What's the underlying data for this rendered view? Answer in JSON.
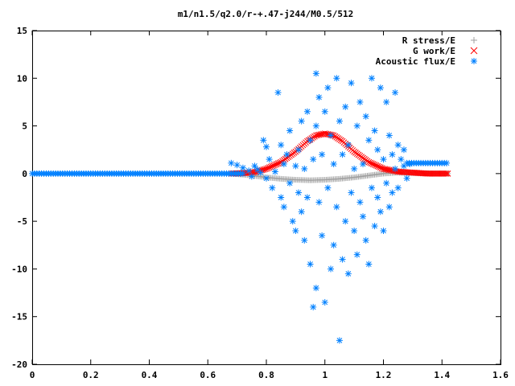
{
  "chart_data": {
    "type": "scatter",
    "title": "m1/n1.5/q2.0/r-+.47-j244/M0.5/512",
    "xlabel": "",
    "ylabel": "",
    "xlim": [
      0,
      1.6
    ],
    "ylim": [
      -20,
      15
    ],
    "grid": false,
    "legend_position": "top-right",
    "x_tick_labels": [
      "0",
      "0.2",
      "0.4",
      "0.6",
      "0.8",
      "1",
      "1.2",
      "1.4",
      "1.6"
    ],
    "y_tick_labels": [
      "15",
      "10",
      "5",
      "0",
      "-5",
      "-10",
      "-15",
      "-20"
    ],
    "series": [
      {
        "name": "R stress/E",
        "marker": "+",
        "color": "#a0a0a0",
        "curve": [
          [
            0.68,
            0.0
          ],
          [
            0.75,
            -0.2
          ],
          [
            0.8,
            -0.4
          ],
          [
            0.85,
            -0.55
          ],
          [
            0.9,
            -0.65
          ],
          [
            0.95,
            -0.7
          ],
          [
            1.0,
            -0.65
          ],
          [
            1.05,
            -0.55
          ],
          [
            1.1,
            -0.4
          ],
          [
            1.15,
            -0.2
          ],
          [
            1.2,
            0.0
          ],
          [
            1.25,
            0.1
          ],
          [
            1.3,
            0.05
          ],
          [
            1.42,
            0.0
          ]
        ]
      },
      {
        "name": "G work/E",
        "marker": "x",
        "color": "#ff0000",
        "curve": [
          [
            0.68,
            0.0
          ],
          [
            0.72,
            0.05
          ],
          [
            0.76,
            0.15
          ],
          [
            0.8,
            0.5
          ],
          [
            0.85,
            1.2
          ],
          [
            0.9,
            2.3
          ],
          [
            0.94,
            3.4
          ],
          [
            0.97,
            4.0
          ],
          [
            1.0,
            4.2
          ],
          [
            1.03,
            4.0
          ],
          [
            1.06,
            3.4
          ],
          [
            1.1,
            2.3
          ],
          [
            1.15,
            1.2
          ],
          [
            1.2,
            0.5
          ],
          [
            1.25,
            0.2
          ],
          [
            1.3,
            0.1
          ],
          [
            1.35,
            0.0
          ],
          [
            1.42,
            0.0
          ]
        ]
      },
      {
        "name": "Acoustic flux/E",
        "marker": "*",
        "color": "#0080ff",
        "line_segments": [
          {
            "x_range": [
              0,
              0.72
            ],
            "y": 0.0
          },
          {
            "x_range": [
              1.28,
              1.42
            ],
            "y": 1.1
          }
        ],
        "points": [
          [
            0.68,
            1.1
          ],
          [
            0.7,
            0.9
          ],
          [
            0.72,
            0.6
          ],
          [
            0.74,
            0.3
          ],
          [
            0.75,
            -0.3
          ],
          [
            0.76,
            0.8
          ],
          [
            0.77,
            0.4
          ],
          [
            0.78,
            0.1
          ],
          [
            0.79,
            3.5
          ],
          [
            0.8,
            2.8
          ],
          [
            0.8,
            -0.5
          ],
          [
            0.81,
            1.5
          ],
          [
            0.82,
            -1.5
          ],
          [
            0.83,
            0.2
          ],
          [
            0.84,
            8.5
          ],
          [
            0.85,
            3.0
          ],
          [
            0.85,
            -2.5
          ],
          [
            0.86,
            1.0
          ],
          [
            0.86,
            -3.5
          ],
          [
            0.87,
            2.0
          ],
          [
            0.88,
            -1.0
          ],
          [
            0.88,
            4.5
          ],
          [
            0.89,
            -5.0
          ],
          [
            0.9,
            0.8
          ],
          [
            0.9,
            -6.0
          ],
          [
            0.91,
            2.5
          ],
          [
            0.91,
            -2.0
          ],
          [
            0.92,
            5.5
          ],
          [
            0.92,
            -4.0
          ],
          [
            0.93,
            0.5
          ],
          [
            0.93,
            -7.0
          ],
          [
            0.94,
            6.5
          ],
          [
            0.94,
            -2.5
          ],
          [
            0.95,
            -9.5
          ],
          [
            0.95,
            3.5
          ],
          [
            0.96,
            -14.0
          ],
          [
            0.96,
            1.5
          ],
          [
            0.97,
            10.5
          ],
          [
            0.97,
            -12.0
          ],
          [
            0.97,
            5.0
          ],
          [
            0.98,
            -3.0
          ],
          [
            0.98,
            8.0
          ],
          [
            0.99,
            -6.5
          ],
          [
            0.99,
            2.0
          ],
          [
            1.0,
            -13.5
          ],
          [
            1.0,
            6.5
          ],
          [
            1.01,
            -1.5
          ],
          [
            1.01,
            9.0
          ],
          [
            1.02,
            -10.0
          ],
          [
            1.02,
            4.0
          ],
          [
            1.03,
            -7.5
          ],
          [
            1.03,
            1.0
          ],
          [
            1.04,
            10.0
          ],
          [
            1.04,
            -3.5
          ],
          [
            1.05,
            -17.5
          ],
          [
            1.05,
            5.5
          ],
          [
            1.06,
            -9.0
          ],
          [
            1.06,
            2.0
          ],
          [
            1.07,
            -5.0
          ],
          [
            1.07,
            7.0
          ],
          [
            1.08,
            -10.5
          ],
          [
            1.08,
            3.0
          ],
          [
            1.09,
            -2.0
          ],
          [
            1.09,
            9.5
          ],
          [
            1.1,
            -6.0
          ],
          [
            1.1,
            0.5
          ],
          [
            1.11,
            -8.5
          ],
          [
            1.11,
            5.0
          ],
          [
            1.12,
            -3.0
          ],
          [
            1.12,
            7.5
          ],
          [
            1.13,
            -4.5
          ],
          [
            1.13,
            1.0
          ],
          [
            1.14,
            -7.0
          ],
          [
            1.14,
            6.0
          ],
          [
            1.15,
            -9.5
          ],
          [
            1.15,
            3.5
          ],
          [
            1.16,
            10.0
          ],
          [
            1.16,
            -1.5
          ],
          [
            1.17,
            -5.5
          ],
          [
            1.17,
            4.5
          ],
          [
            1.18,
            -2.5
          ],
          [
            1.18,
            2.5
          ],
          [
            1.19,
            9.0
          ],
          [
            1.19,
            -4.0
          ],
          [
            1.2,
            1.5
          ],
          [
            1.2,
            -6.0
          ],
          [
            1.21,
            7.5
          ],
          [
            1.21,
            -1.0
          ],
          [
            1.22,
            -3.5
          ],
          [
            1.22,
            4.0
          ],
          [
            1.23,
            2.0
          ],
          [
            1.23,
            -2.0
          ],
          [
            1.24,
            8.5
          ],
          [
            1.24,
            0.5
          ],
          [
            1.25,
            3.0
          ],
          [
            1.25,
            -1.5
          ],
          [
            1.26,
            1.5
          ],
          [
            1.27,
            0.8
          ],
          [
            1.27,
            2.5
          ],
          [
            1.28,
            -0.5
          ],
          [
            1.29,
            1.0
          ]
        ]
      }
    ]
  }
}
